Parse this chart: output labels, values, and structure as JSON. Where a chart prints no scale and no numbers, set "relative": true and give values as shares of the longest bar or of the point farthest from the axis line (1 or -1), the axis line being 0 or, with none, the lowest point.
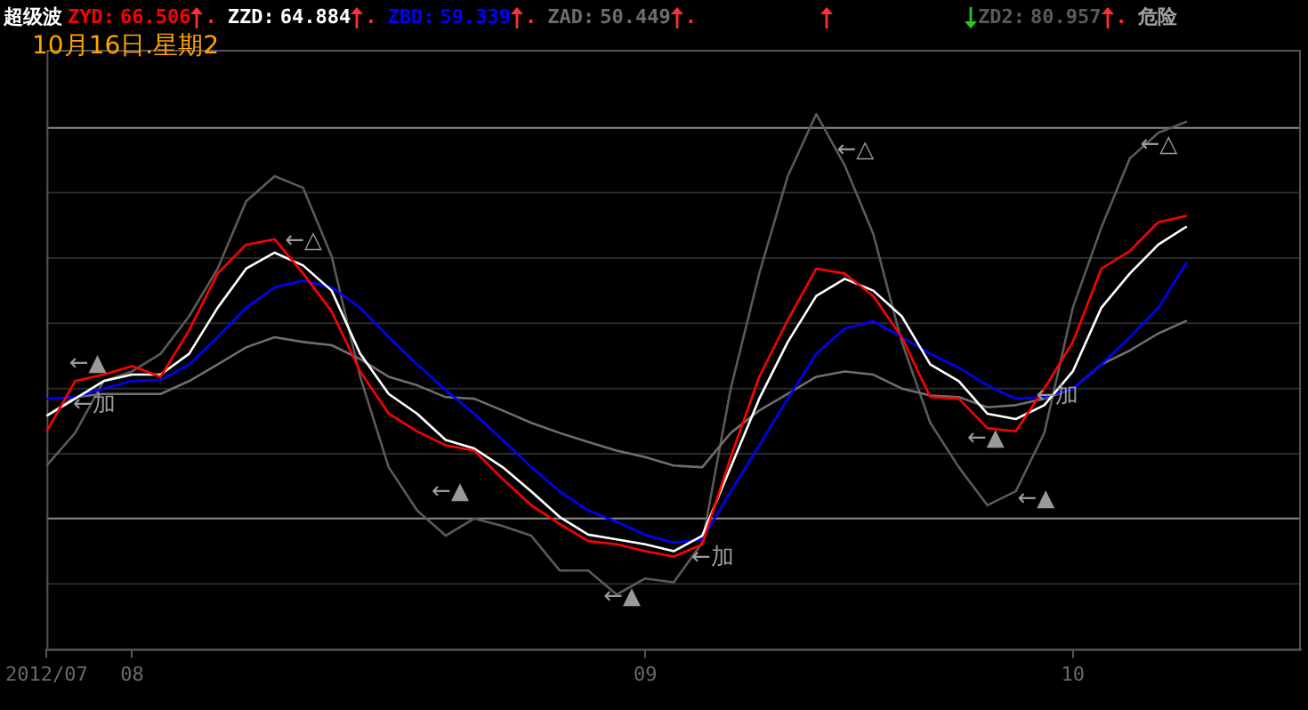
{
  "chart_data": {
    "type": "line",
    "title": "超级波",
    "subtitle": "10月16日.星期2",
    "relative": true,
    "categories": [
      "2012/07",
      null,
      null,
      "08",
      null,
      null,
      null,
      null,
      null,
      null,
      null,
      null,
      null,
      null,
      null,
      null,
      null,
      null,
      null,
      null,
      null,
      "09",
      null,
      null,
      null,
      null,
      null,
      null,
      null,
      null,
      null,
      null,
      null,
      null,
      null,
      null,
      "10",
      null,
      null,
      null,
      null,
      null,
      null,
      null,
      null
    ],
    "tick_labels": "x",
    "legend": "top left",
    "ref_lines": [
      {
        "axis": "y",
        "value": 0.122,
        "color": "#2a2a2a"
      },
      {
        "axis": "y",
        "value": 0.244,
        "color": "#8c8c8c"
      },
      {
        "axis": "y",
        "value": 0.365,
        "color": "#2a2a2a"
      },
      {
        "axis": "y",
        "value": 0.487,
        "color": "#2a2a2a"
      },
      {
        "axis": "y",
        "value": 0.609,
        "color": "#2a2a2a"
      },
      {
        "axis": "y",
        "value": 0.731,
        "color": "#2a2a2a"
      },
      {
        "axis": "y",
        "value": 0.853,
        "color": "#2a2a2a"
      },
      {
        "axis": "y",
        "value": 0.974,
        "color": "#8c8c8c"
      }
    ],
    "series": [
      {
        "name": "ZYD:",
        "color": "#ff0000",
        "values": [
          0.407,
          0.501,
          0.513,
          0.529,
          0.509,
          0.596,
          0.702,
          0.756,
          0.766,
          0.702,
          0.631,
          0.519,
          0.44,
          0.407,
          0.381,
          0.371,
          0.318,
          0.269,
          0.234,
          0.202,
          0.196,
          0.183,
          0.173,
          0.196,
          0.359,
          0.509,
          0.615,
          0.711,
          0.702,
          0.66,
          0.583,
          0.471,
          0.468,
          0.413,
          0.407,
          0.487,
          0.574,
          0.711,
          0.744,
          0.798,
          0.81,
          null,
          null,
          null,
          null
        ]
      },
      {
        "name": "ZZD:",
        "color": "#ffffff",
        "values": [
          0.436,
          0.468,
          0.501,
          0.513,
          0.513,
          0.552,
          0.638,
          0.711,
          0.741,
          0.717,
          0.67,
          0.552,
          0.477,
          0.44,
          0.391,
          0.375,
          0.34,
          0.295,
          0.247,
          0.214,
          0.205,
          0.196,
          0.183,
          0.212,
          0.34,
          0.468,
          0.574,
          0.66,
          0.692,
          0.67,
          0.622,
          0.532,
          0.501,
          0.44,
          0.43,
          0.456,
          0.519,
          0.638,
          0.702,
          0.756,
          0.79,
          null,
          null,
          null,
          null
        ]
      },
      {
        "name": "ZBD:",
        "color": "#0000ff",
        "values": [
          0.468,
          0.471,
          0.487,
          0.501,
          0.503,
          0.532,
          0.583,
          0.638,
          0.676,
          0.689,
          0.676,
          0.638,
          0.583,
          0.532,
          0.484,
          0.44,
          0.391,
          0.34,
          0.295,
          0.259,
          0.238,
          0.214,
          0.199,
          0.205,
          0.295,
          0.381,
          0.468,
          0.552,
          0.599,
          0.613,
          0.583,
          0.552,
          0.526,
          0.493,
          0.468,
          0.471,
          0.487,
          0.532,
          0.583,
          0.638,
          0.723,
          null,
          null,
          null,
          null
        ]
      },
      {
        "name": "ZAD:",
        "color": "#6e6e6e",
        "values": [
          0.436,
          0.471,
          0.477,
          0.477,
          0.477,
          0.501,
          0.532,
          0.564,
          0.583,
          0.574,
          0.568,
          0.542,
          0.509,
          0.493,
          0.471,
          0.468,
          0.446,
          0.423,
          0.404,
          0.387,
          0.371,
          0.359,
          0.343,
          0.34,
          0.404,
          0.446,
          0.477,
          0.509,
          0.519,
          0.513,
          0.487,
          0.474,
          0.471,
          0.452,
          0.456,
          0.468,
          0.487,
          0.532,
          0.558,
          0.59,
          0.614,
          null,
          null,
          null,
          null
        ]
      },
      {
        "name": "ZD2:",
        "color": "#5a5a5a",
        "values": [
          0.343,
          0.404,
          0.501,
          0.519,
          0.552,
          0.622,
          0.711,
          0.837,
          0.884,
          0.862,
          0.734,
          0.509,
          0.34,
          0.259,
          0.212,
          0.244,
          0.23,
          0.212,
          0.147,
          0.147,
          0.102,
          0.132,
          0.125,
          0.199,
          0.487,
          0.702,
          0.884,
          1,
          0.904,
          0.776,
          0.574,
          0.423,
          0.34,
          0.269,
          0.295,
          0.404,
          0.638,
          0.788,
          0.917,
          0.965,
          0.986,
          null,
          null,
          null,
          null
        ]
      }
    ],
    "annotations": [
      "66.506",
      ".",
      "64.884",
      ".",
      "59.339",
      ".",
      "50.449",
      ".",
      "80.957",
      ".",
      "危险",
      "←加",
      "←▲",
      "←△",
      "←▲",
      "←▲",
      "←加",
      "←△",
      "←▲",
      "←▲",
      "←加",
      "←△"
    ]
  }
}
